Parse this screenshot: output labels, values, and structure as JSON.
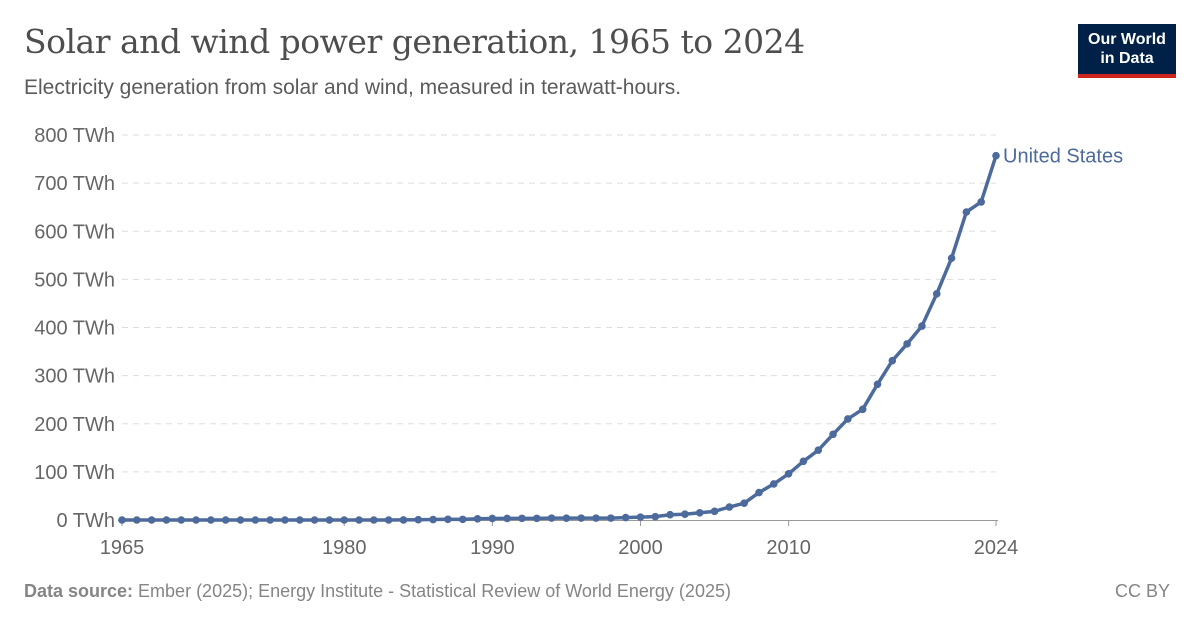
{
  "header": {
    "title": "Solar and wind power generation, 1965 to 2024",
    "subtitle": "Electricity generation from solar and wind, measured in terawatt-hours.",
    "logo": "Our World in Data"
  },
  "footer": {
    "source_label": "Data source:",
    "source_text": " Ember (2025); Energy Institute - Statistical Review of World Energy (2025)",
    "license": "CC BY"
  },
  "chart_data": {
    "type": "line",
    "title": "Solar and wind power generation, 1965 to 2024",
    "xlabel": "",
    "ylabel": "",
    "ylim": [
      0,
      800
    ],
    "xlim": [
      1965,
      2024
    ],
    "grid": "horizontal dashed",
    "legend": "inline-right",
    "y_ticks": [
      "0 TWh",
      "100 TWh",
      "200 TWh",
      "300 TWh",
      "400 TWh",
      "500 TWh",
      "600 TWh",
      "700 TWh",
      "800 TWh"
    ],
    "x_ticks": [
      "1965",
      "1980",
      "1990",
      "2000",
      "2010",
      "2024"
    ],
    "colors": {
      "United States": "#4c6a9c"
    },
    "series": [
      {
        "name": "United States",
        "x": [
          1965,
          1966,
          1967,
          1968,
          1969,
          1970,
          1971,
          1972,
          1973,
          1974,
          1975,
          1976,
          1977,
          1978,
          1979,
          1980,
          1981,
          1982,
          1983,
          1984,
          1985,
          1986,
          1987,
          1988,
          1989,
          1990,
          1991,
          1992,
          1993,
          1994,
          1995,
          1996,
          1997,
          1998,
          1999,
          2000,
          2001,
          2002,
          2003,
          2004,
          2005,
          2006,
          2007,
          2008,
          2009,
          2010,
          2011,
          2012,
          2013,
          2014,
          2015,
          2016,
          2017,
          2018,
          2019,
          2020,
          2021,
          2022,
          2023,
          2024
        ],
        "values": [
          0,
          0,
          0,
          0,
          0,
          0,
          0,
          0,
          0,
          0,
          0,
          0,
          0,
          0,
          0,
          0,
          0,
          0,
          0,
          0.2,
          0.6,
          1,
          1.5,
          1.3,
          2.5,
          3.2,
          3.3,
          3.4,
          3.4,
          3.9,
          3.8,
          3.9,
          3.9,
          3.9,
          5,
          6,
          7,
          11,
          12,
          15,
          18,
          27,
          35,
          57,
          75,
          96,
          122,
          145,
          178,
          210,
          230,
          282,
          331,
          366,
          403,
          470,
          544,
          640,
          661,
          757
        ]
      }
    ]
  }
}
